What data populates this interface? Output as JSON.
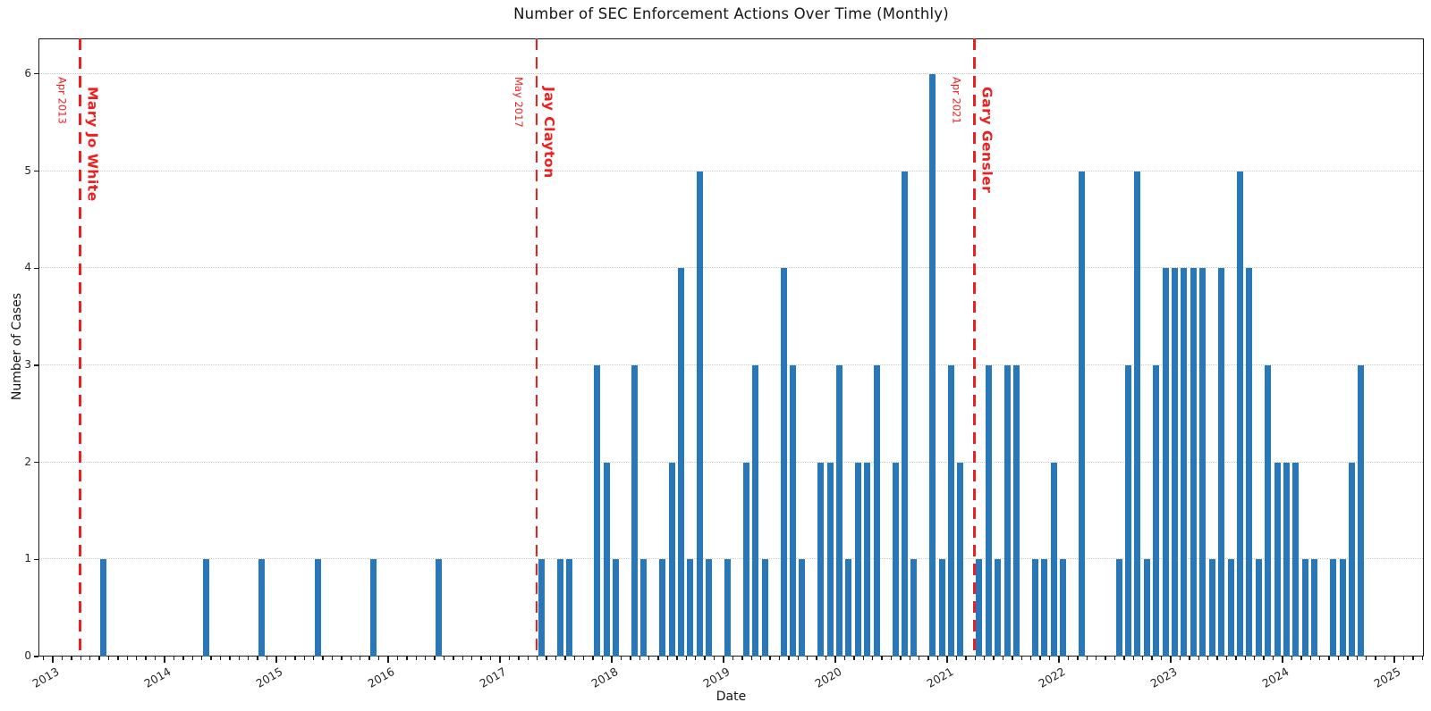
{
  "title": "Number of SEC Enforcement Actions Over Time (Monthly)",
  "chart_data": {
    "type": "bar",
    "title": "Number of SEC Enforcement Actions Over Time (Monthly)",
    "xlabel": "Date",
    "ylabel": "Number of Cases",
    "ylim": [
      0,
      6.37
    ],
    "yticks": [
      0,
      1,
      2,
      3,
      4,
      5,
      6
    ],
    "xtick_years": [
      2013,
      2014,
      2015,
      2016,
      2017,
      2018,
      2019,
      2020,
      2021,
      2022,
      2023,
      2024,
      2025
    ],
    "x_axis_start": "2012-12",
    "x_axis_end": "2025-04",
    "grid": "horizontal-dotted",
    "legend": "none",
    "bar_color": "#2878b9",
    "event_color": "#ee1f1f",
    "monthly_counts": [
      {
        "month": "2013-06",
        "count": 1
      },
      {
        "month": "2014-05",
        "count": 1
      },
      {
        "month": "2014-11",
        "count": 1
      },
      {
        "month": "2015-05",
        "count": 1
      },
      {
        "month": "2015-11",
        "count": 1
      },
      {
        "month": "2016-06",
        "count": 1
      },
      {
        "month": "2017-05",
        "count": 1
      },
      {
        "month": "2017-07",
        "count": 1
      },
      {
        "month": "2017-08",
        "count": 1
      },
      {
        "month": "2017-11",
        "count": 3
      },
      {
        "month": "2017-12",
        "count": 2
      },
      {
        "month": "2018-01",
        "count": 1
      },
      {
        "month": "2018-03",
        "count": 3
      },
      {
        "month": "2018-04",
        "count": 1
      },
      {
        "month": "2018-06",
        "count": 1
      },
      {
        "month": "2018-07",
        "count": 2
      },
      {
        "month": "2018-08",
        "count": 4
      },
      {
        "month": "2018-09",
        "count": 1
      },
      {
        "month": "2018-10",
        "count": 5
      },
      {
        "month": "2018-11",
        "count": 1
      },
      {
        "month": "2019-01",
        "count": 1
      },
      {
        "month": "2019-03",
        "count": 2
      },
      {
        "month": "2019-04",
        "count": 3
      },
      {
        "month": "2019-05",
        "count": 1
      },
      {
        "month": "2019-07",
        "count": 4
      },
      {
        "month": "2019-08",
        "count": 3
      },
      {
        "month": "2019-09",
        "count": 1
      },
      {
        "month": "2019-11",
        "count": 2
      },
      {
        "month": "2019-12",
        "count": 2
      },
      {
        "month": "2020-01",
        "count": 3
      },
      {
        "month": "2020-02",
        "count": 1
      },
      {
        "month": "2020-03",
        "count": 2
      },
      {
        "month": "2020-04",
        "count": 2
      },
      {
        "month": "2020-05",
        "count": 3
      },
      {
        "month": "2020-07",
        "count": 2
      },
      {
        "month": "2020-08",
        "count": 5
      },
      {
        "month": "2020-09",
        "count": 1
      },
      {
        "month": "2020-11",
        "count": 6
      },
      {
        "month": "2020-12",
        "count": 1
      },
      {
        "month": "2021-01",
        "count": 3
      },
      {
        "month": "2021-02",
        "count": 2
      },
      {
        "month": "2021-04",
        "count": 1
      },
      {
        "month": "2021-05",
        "count": 3
      },
      {
        "month": "2021-06",
        "count": 1
      },
      {
        "month": "2021-07",
        "count": 3
      },
      {
        "month": "2021-08",
        "count": 3
      },
      {
        "month": "2021-10",
        "count": 1
      },
      {
        "month": "2021-11",
        "count": 1
      },
      {
        "month": "2021-12",
        "count": 2
      },
      {
        "month": "2022-01",
        "count": 1
      },
      {
        "month": "2022-03",
        "count": 5
      },
      {
        "month": "2022-07",
        "count": 1
      },
      {
        "month": "2022-08",
        "count": 3
      },
      {
        "month": "2022-09",
        "count": 5
      },
      {
        "month": "2022-10",
        "count": 1
      },
      {
        "month": "2022-11",
        "count": 3
      },
      {
        "month": "2022-12",
        "count": 4
      },
      {
        "month": "2023-01",
        "count": 4
      },
      {
        "month": "2023-02",
        "count": 4
      },
      {
        "month": "2023-03",
        "count": 4
      },
      {
        "month": "2023-04",
        "count": 4
      },
      {
        "month": "2023-05",
        "count": 1
      },
      {
        "month": "2023-06",
        "count": 4
      },
      {
        "month": "2023-07",
        "count": 1
      },
      {
        "month": "2023-08",
        "count": 5
      },
      {
        "month": "2023-09",
        "count": 4
      },
      {
        "month": "2023-10",
        "count": 1
      },
      {
        "month": "2023-11",
        "count": 3
      },
      {
        "month": "2023-12",
        "count": 2
      },
      {
        "month": "2024-01",
        "count": 2
      },
      {
        "month": "2024-02",
        "count": 2
      },
      {
        "month": "2024-03",
        "count": 1
      },
      {
        "month": "2024-04",
        "count": 1
      },
      {
        "month": "2024-06",
        "count": 1
      },
      {
        "month": "2024-07",
        "count": 1
      },
      {
        "month": "2024-08",
        "count": 2
      },
      {
        "month": "2024-09",
        "count": 3
      }
    ],
    "events": [
      {
        "month": "2013-04",
        "date_label": "Apr 2013",
        "name": "Mary Jo White"
      },
      {
        "month": "2017-05",
        "date_label": "May 2017",
        "name": "Jay Clayton"
      },
      {
        "month": "2021-04",
        "date_label": "Apr 2021",
        "name": "Gary Gensler"
      }
    ]
  }
}
